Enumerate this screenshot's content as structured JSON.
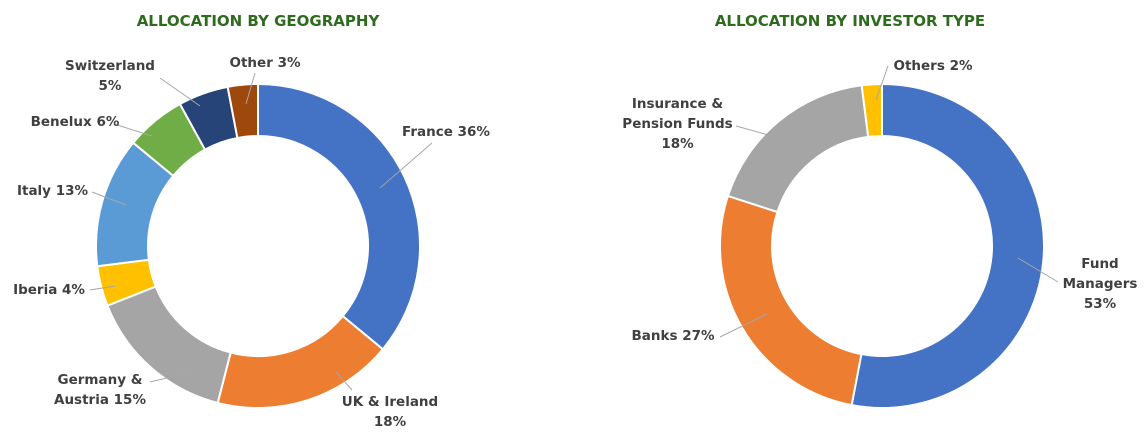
{
  "chart_data": [
    {
      "type": "donut",
      "title": "ALLOCATION BY GEOGRAPHY",
      "categories": [
        "France",
        "UK & Ireland",
        "Germany & Austria",
        "Iberia",
        "Italy",
        "Benelux",
        "Switzerland",
        "Other"
      ],
      "values": [
        36,
        18,
        15,
        4,
        13,
        6,
        5,
        3
      ],
      "value_labels": [
        "36%",
        "18%",
        "15%",
        "4%",
        "13%",
        "6%",
        "5%",
        "3%"
      ],
      "colors": [
        "#4472c4",
        "#ed7d31",
        "#a5a5a5",
        "#ffc000",
        "#5b9bd5",
        "#70ad47",
        "#264478",
        "#9e480e"
      ]
    },
    {
      "type": "donut",
      "title": "ALLOCATION BY INVESTOR TYPE",
      "categories": [
        "Fund Managers",
        "Banks",
        "Insurance & Pension Funds",
        "Others"
      ],
      "values": [
        53,
        27,
        18,
        2
      ],
      "value_labels": [
        "53%",
        "27%",
        "18%",
        "2%"
      ],
      "colors": [
        "#4472c4",
        "#ed7d31",
        "#a5a5a5",
        "#ffc000"
      ]
    }
  ]
}
